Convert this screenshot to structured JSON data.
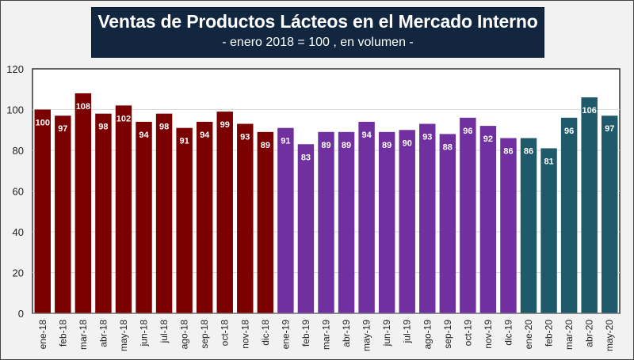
{
  "chart_data": {
    "type": "bar",
    "title": "Ventas de Productos Lácteos en el Mercado Interno",
    "subtitle": "- enero 2018 = 100 , en volumen -",
    "xlabel": "",
    "ylabel": "",
    "ylim": [
      0,
      120
    ],
    "yticks": [
      0,
      20,
      40,
      60,
      80,
      100,
      120
    ],
    "grid": true,
    "legend": "none",
    "categories": [
      "ene-18",
      "feb-18",
      "mar-18",
      "abr-18",
      "may-18",
      "jun-18",
      "jul-18",
      "ago-18",
      "sep-18",
      "oct-18",
      "nov-18",
      "dic-18",
      "ene-19",
      "feb-19",
      "mar-19",
      "abr-19",
      "may-19",
      "jun-19",
      "jul-19",
      "ago-19",
      "sep-19",
      "oct-19",
      "nov-19",
      "dic-19",
      "ene-20",
      "feb-20",
      "mar-20",
      "abr-20",
      "may-20"
    ],
    "values": [
      100,
      97,
      108,
      98,
      102,
      94,
      98,
      91,
      94,
      99,
      93,
      89,
      91,
      83,
      89,
      89,
      94,
      89,
      90,
      93,
      88,
      96,
      92,
      86,
      86,
      81,
      96,
      106,
      97
    ],
    "groups": [
      {
        "name": "2018",
        "start": 0,
        "end": 11,
        "color": "#7b0000"
      },
      {
        "name": "2019",
        "start": 12,
        "end": 23,
        "color": "#7030a0"
      },
      {
        "name": "2020",
        "start": 24,
        "end": 28,
        "color": "#1f5a6a"
      }
    ]
  }
}
